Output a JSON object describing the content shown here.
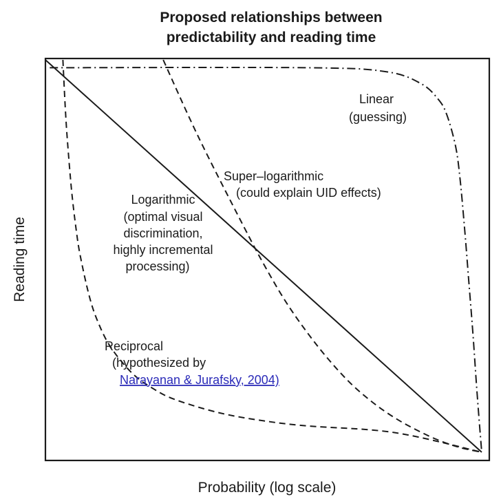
{
  "chart_data": {
    "type": "line",
    "title": "Proposed relationships between predictability and reading time",
    "title_lines": [
      "Proposed relationships between",
      "predictability and reading time"
    ],
    "xlabel": "Probability (log scale)",
    "ylabel": "Reading time",
    "grid": false,
    "legend": "none (curves labeled directly)",
    "xlim": [
      0,
      1
    ],
    "ylim": [
      0,
      1
    ],
    "series": [
      {
        "name": "Logarithmic",
        "style": "solid",
        "annotation_lines": [
          "Logarithmic",
          "(optimal visual",
          "discrimination,",
          "highly incremental",
          "processing)"
        ],
        "x": [
          0.0,
          1.0
        ],
        "y": [
          1.0,
          0.0
        ]
      },
      {
        "name": "Super-logarithmic",
        "style": "dashed",
        "annotation_lines": [
          "Super–logarithmic",
          "(could explain UID effects)"
        ],
        "x": [
          0.27,
          0.35,
          0.45,
          0.5,
          0.55,
          0.6,
          0.65,
          0.7,
          0.75,
          0.8,
          0.85,
          0.9,
          0.95,
          1.0
        ],
        "y": [
          1.0,
          0.805,
          0.585,
          0.48,
          0.385,
          0.305,
          0.235,
          0.175,
          0.127,
          0.088,
          0.057,
          0.031,
          0.012,
          0.0
        ]
      },
      {
        "name": "Linear",
        "style": "dash-dot",
        "annotation_lines": [
          "Linear",
          "(guessing)"
        ],
        "x": [
          0.01,
          0.6,
          0.78,
          0.86,
          0.9,
          0.92,
          0.94,
          0.95,
          0.96,
          0.97,
          0.98,
          0.99,
          1.0
        ],
        "y": [
          0.98,
          0.98,
          0.97,
          0.94,
          0.9,
          0.86,
          0.78,
          0.7,
          0.58,
          0.44,
          0.3,
          0.14,
          0.0
        ]
      },
      {
        "name": "Reciprocal",
        "style": "dashed",
        "annotation_lines": [
          "Reciprocal",
          "(hypothesized by"
        ],
        "annotation_link": "Narayanan & Jurafsky, 2004)",
        "x": [
          0.04,
          0.045,
          0.05,
          0.06,
          0.07,
          0.08,
          0.1,
          0.12,
          0.15,
          0.2,
          0.25,
          0.3,
          0.4,
          0.5,
          0.6,
          0.8,
          1.0
        ],
        "y": [
          1.0,
          0.889,
          0.8,
          0.667,
          0.571,
          0.5,
          0.4,
          0.333,
          0.267,
          0.2,
          0.16,
          0.133,
          0.1,
          0.08,
          0.067,
          0.05,
          0.0
        ]
      }
    ]
  }
}
